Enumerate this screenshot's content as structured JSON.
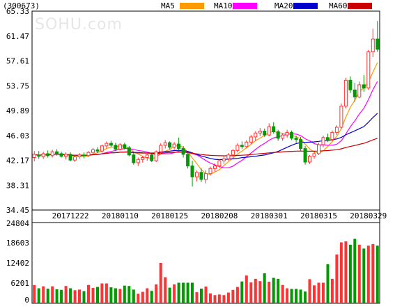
{
  "header": {
    "code": "(300673)",
    "legend": [
      {
        "name": "MA5",
        "color": "#ff9900"
      },
      {
        "name": "MA10",
        "color": "#ff00ff"
      },
      {
        "name": "MA20",
        "color": "#0000cc"
      },
      {
        "name": "MA60",
        "color": "#cc0000"
      }
    ]
  },
  "watermark": "SOHU.com",
  "colors": {
    "up": "#ff3333",
    "down": "#009900",
    "grid": "#000000"
  },
  "chart_data": [
    {
      "type": "candlestick",
      "ylim": [
        34.45,
        65.33
      ],
      "y_ticks": [
        "65.33",
        "61.47",
        "57.61",
        "53.75",
        "49.89",
        "46.03",
        "42.17",
        "38.31",
        "34.45"
      ],
      "x_tick_labels": [
        "20171222",
        "20180110",
        "20180125",
        "20180208",
        "20180301",
        "20180315",
        "20180329"
      ],
      "x_tick_index": [
        8,
        19,
        30,
        41,
        52,
        63,
        74
      ],
      "candles": [
        [
          42.6,
          43.6,
          42.0,
          43.1
        ],
        [
          43.0,
          43.6,
          42.4,
          42.8
        ],
        [
          42.7,
          43.5,
          42.4,
          43.2
        ],
        [
          43.2,
          43.7,
          42.6,
          42.9
        ],
        [
          42.9,
          43.8,
          42.6,
          43.5
        ],
        [
          43.5,
          43.9,
          42.9,
          43.2
        ],
        [
          43.2,
          43.5,
          42.6,
          42.8
        ],
        [
          42.8,
          43.4,
          42.3,
          43.1
        ],
        [
          43.1,
          43.4,
          42.0,
          42.2
        ],
        [
          42.2,
          43.0,
          41.9,
          42.7
        ],
        [
          42.7,
          43.3,
          42.4,
          43.0
        ],
        [
          43.0,
          43.4,
          42.5,
          42.9
        ],
        [
          42.9,
          43.6,
          42.7,
          43.4
        ],
        [
          43.4,
          44.1,
          43.1,
          43.8
        ],
        [
          43.8,
          44.2,
          43.3,
          43.6
        ],
        [
          43.6,
          44.6,
          43.4,
          44.4
        ],
        [
          44.4,
          45.1,
          44.0,
          44.8
        ],
        [
          44.8,
          45.2,
          44.2,
          44.5
        ],
        [
          44.5,
          44.9,
          43.6,
          43.9
        ],
        [
          43.9,
          44.8,
          43.7,
          44.6
        ],
        [
          44.6,
          44.9,
          43.8,
          44.1
        ],
        [
          44.1,
          44.4,
          42.8,
          43.0
        ],
        [
          43.0,
          43.3,
          41.5,
          41.8
        ],
        [
          41.8,
          42.6,
          41.3,
          42.3
        ],
        [
          42.3,
          42.9,
          41.8,
          42.6
        ],
        [
          42.6,
          43.4,
          42.1,
          43.0
        ],
        [
          43.0,
          43.2,
          41.9,
          42.1
        ],
        [
          42.1,
          43.7,
          41.9,
          43.5
        ],
        [
          43.5,
          44.8,
          43.2,
          44.5
        ],
        [
          44.5,
          45.3,
          44.0,
          44.9
        ],
        [
          44.9,
          45.1,
          43.9,
          44.2
        ],
        [
          44.2,
          45.0,
          43.8,
          44.7
        ],
        [
          44.7,
          45.7,
          43.7,
          44.0
        ],
        [
          44.0,
          44.4,
          42.6,
          43.1
        ],
        [
          43.1,
          43.3,
          40.9,
          41.3
        ],
        [
          41.3,
          42.1,
          38.1,
          39.6
        ],
        [
          39.6,
          40.6,
          38.9,
          40.3
        ],
        [
          40.3,
          40.9,
          38.8,
          39.2
        ],
        [
          39.2,
          40.6,
          38.6,
          40.1
        ],
        [
          40.1,
          41.2,
          39.8,
          40.9
        ],
        [
          40.9,
          41.7,
          40.4,
          41.3
        ],
        [
          41.3,
          42.3,
          41.0,
          42.1
        ],
        [
          42.1,
          42.8,
          41.6,
          42.4
        ],
        [
          42.4,
          43.3,
          42.1,
          43.0
        ],
        [
          43.0,
          43.9,
          42.6,
          43.7
        ],
        [
          43.7,
          44.8,
          43.4,
          44.5
        ],
        [
          44.5,
          45.1,
          43.9,
          44.3
        ],
        [
          44.3,
          45.3,
          44.1,
          45.0
        ],
        [
          45.0,
          46.1,
          44.7,
          45.8
        ],
        [
          45.8,
          46.7,
          45.2,
          46.4
        ],
        [
          46.4,
          47.2,
          45.9,
          46.7
        ],
        [
          46.7,
          47.1,
          45.8,
          46.1
        ],
        [
          46.1,
          47.9,
          45.9,
          47.4
        ],
        [
          47.4,
          48.1,
          46.3,
          46.6
        ],
        [
          46.6,
          46.9,
          45.2,
          45.6
        ],
        [
          45.6,
          46.4,
          45.2,
          46.1
        ],
        [
          46.1,
          46.9,
          45.7,
          46.5
        ],
        [
          46.5,
          46.8,
          45.3,
          45.6
        ],
        [
          45.6,
          46.0,
          44.9,
          45.4
        ],
        [
          45.4,
          45.8,
          43.6,
          44.0
        ],
        [
          44.0,
          44.4,
          41.5,
          41.9
        ],
        [
          41.9,
          43.0,
          41.6,
          42.8
        ],
        [
          42.8,
          43.5,
          42.4,
          43.2
        ],
        [
          43.2,
          44.9,
          43.0,
          44.6
        ],
        [
          44.6,
          46.0,
          44.2,
          45.7
        ],
        [
          45.7,
          46.3,
          45.0,
          45.4
        ],
        [
          45.4,
          46.8,
          45.1,
          46.5
        ],
        [
          46.5,
          47.6,
          46.1,
          47.3
        ],
        [
          47.3,
          51.0,
          47.0,
          50.6
        ],
        [
          50.6,
          55.0,
          50.2,
          54.6
        ],
        [
          54.6,
          55.2,
          52.6,
          53.1
        ],
        [
          53.1,
          54.2,
          51.3,
          52.0
        ],
        [
          52.0,
          54.4,
          51.8,
          53.9
        ],
        [
          53.9,
          55.4,
          52.8,
          53.4
        ],
        [
          53.4,
          59.3,
          53.1,
          59.0
        ],
        [
          59.0,
          62.6,
          58.2,
          61.0
        ],
        [
          61.0,
          63.8,
          59.0,
          59.4
        ]
      ],
      "volume": {
        "ylim": [
          0,
          24804
        ],
        "y_ticks": [
          "24804",
          "18603",
          "12402",
          "6201",
          "0"
        ],
        "values": [
          5600,
          4600,
          5200,
          4500,
          5200,
          4300,
          4100,
          5300,
          4600,
          4000,
          4200,
          3700,
          5600,
          4700,
          5000,
          6100,
          6100,
          4900,
          4600,
          4400,
          5400,
          5300,
          4200,
          2900,
          3500,
          4600,
          3800,
          5800,
          12400,
          8000,
          4800,
          5800,
          6300,
          6300,
          6300,
          6300,
          3400,
          4500,
          5100,
          3000,
          2500,
          2700,
          2500,
          3300,
          4100,
          5000,
          6700,
          8500,
          6400,
          7500,
          6800,
          9200,
          6600,
          7800,
          7500,
          5600,
          4600,
          4400,
          4400,
          4200,
          3600,
          7400,
          5500,
          6300,
          6300,
          12000,
          7500,
          15000,
          18700,
          19000,
          18000,
          19800,
          18000,
          16800,
          17700,
          18200,
          17700
        ]
      }
    }
  ]
}
